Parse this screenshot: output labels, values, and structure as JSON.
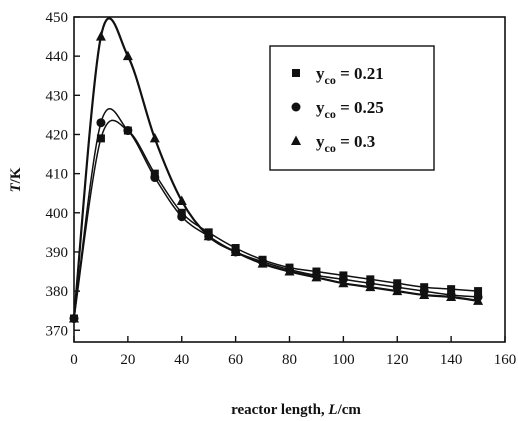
{
  "chart_data": {
    "type": "line",
    "title": "",
    "xlabel": "reactor length, L/cm",
    "xlabel_parts": {
      "prefix": "reactor length, ",
      "var": "L",
      "suffix": "/cm"
    },
    "ylabel": "T/K",
    "ylabel_parts": {
      "var": "T",
      "suffix": "/K"
    },
    "xlim": [
      0,
      160
    ],
    "ylim": [
      367,
      450
    ],
    "xticks": [
      0,
      20,
      40,
      60,
      80,
      100,
      120,
      140,
      160
    ],
    "yticks": [
      370,
      380,
      390,
      400,
      410,
      420,
      430,
      440,
      450
    ],
    "grid": false,
    "legend_position": "top-right",
    "series": [
      {
        "name": "y_co = 0.21",
        "label_parts": {
          "y": "y",
          "sub": "co",
          "rest": " = 0.21"
        },
        "marker": "square",
        "x": [
          0,
          10,
          20,
          30,
          40,
          50,
          60,
          70,
          80,
          90,
          100,
          110,
          120,
          130,
          140,
          150
        ],
        "y": [
          373,
          419,
          421,
          410,
          400,
          395,
          391,
          388,
          386,
          385,
          384,
          383,
          382,
          381,
          380.5,
          380
        ]
      },
      {
        "name": "y_co = 0.25",
        "label_parts": {
          "y": "y",
          "sub": "co",
          "rest": " = 0.25"
        },
        "marker": "circle",
        "x": [
          0,
          10,
          20,
          30,
          40,
          50,
          60,
          70,
          80,
          90,
          100,
          110,
          120,
          130,
          140,
          150
        ],
        "y": [
          373,
          423,
          421,
          409,
          399,
          394,
          390,
          387.5,
          385.5,
          384,
          383,
          382,
          381,
          380,
          379,
          378.5
        ]
      },
      {
        "name": "y_co = 0.3",
        "label_parts": {
          "y": "y",
          "sub": "co",
          "rest": " = 0.3"
        },
        "marker": "triangle",
        "x": [
          0,
          10,
          20,
          30,
          40,
          50,
          60,
          70,
          80,
          90,
          100,
          110,
          120,
          130,
          140,
          150
        ],
        "y": [
          373,
          445,
          440,
          419,
          403,
          394,
          390,
          387,
          385,
          383.5,
          382,
          381,
          380,
          379,
          378.5,
          377.5
        ]
      }
    ]
  }
}
